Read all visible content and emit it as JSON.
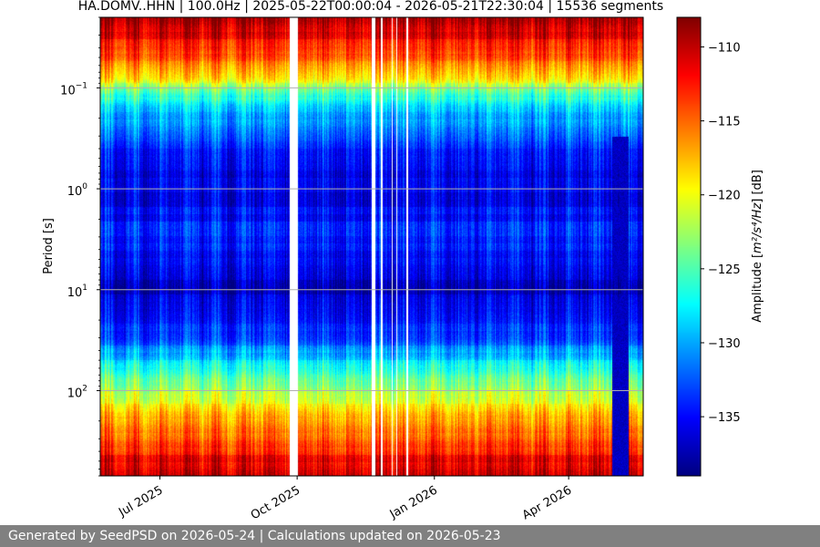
{
  "chart_data": {
    "type": "heatmap",
    "title": "HA.DOMV..HHN | 100.0Hz | 2025-05-22T00:00:04 - 2026-05-21T22:30:04 | 15536 segments",
    "xlabel": "",
    "ylabel": "Period [s]",
    "x_range": [
      "2025-05-22",
      "2026-05-21"
    ],
    "x_ticks": [
      {
        "date": "2025-07-01",
        "label": "Jul 2025"
      },
      {
        "date": "2025-10-01",
        "label": "Oct 2025"
      },
      {
        "date": "2026-01-01",
        "label": "Jan 2026"
      },
      {
        "date": "2026-04-01",
        "label": "Apr 2026"
      }
    ],
    "y_scale": "log",
    "y_inverted": true,
    "y_range": [
      0.02,
      700
    ],
    "y_ticks": [
      {
        "value": 0.1,
        "base": "10",
        "exp": "−1"
      },
      {
        "value": 1,
        "base": "10",
        "exp": "0"
      },
      {
        "value": 10,
        "base": "10",
        "exp": "1"
      },
      {
        "value": 100,
        "base": "10",
        "exp": "2"
      }
    ],
    "grid": true,
    "colormap": "jet",
    "colorbar": {
      "label_prefix": "Amplitude [",
      "label_math": "m²/s⁴/Hz",
      "label_suffix": "] [dB]",
      "range": [
        -139,
        -108
      ],
      "ticks": [
        {
          "value": -110,
          "label": "−110"
        },
        {
          "value": -115,
          "label": "−115"
        },
        {
          "value": -120,
          "label": "−120"
        },
        {
          "value": -125,
          "label": "−125"
        },
        {
          "value": -130,
          "label": "−130"
        },
        {
          "value": -135,
          "label": "−135"
        }
      ]
    },
    "data_gaps": [
      [
        "2025-09-26",
        "2025-10-01"
      ],
      [
        "2025-11-20",
        "2025-11-22"
      ],
      [
        "2025-11-26",
        "2025-11-27"
      ],
      [
        "2025-12-03",
        "2025-12-04"
      ],
      [
        "2025-12-06",
        "2025-12-07"
      ],
      [
        "2025-12-13",
        "2025-12-14"
      ]
    ],
    "profile": [
      {
        "period": 0.02,
        "db": -109
      },
      {
        "period": 0.04,
        "db": -113
      },
      {
        "period": 0.08,
        "db": -119
      },
      {
        "period": 0.15,
        "db": -129
      },
      {
        "period": 0.4,
        "db": -134
      },
      {
        "period": 0.9,
        "db": -136
      },
      {
        "period": 3,
        "db": -134
      },
      {
        "period": 10,
        "db": -137
      },
      {
        "period": 30,
        "db": -133
      },
      {
        "period": 80,
        "db": -124
      },
      {
        "period": 200,
        "db": -117
      },
      {
        "period": 450,
        "db": -112
      },
      {
        "period": 700,
        "db": -110
      }
    ],
    "anomalies": [
      {
        "start": "2026-04-30",
        "end": "2026-05-11",
        "min_period": 0.3,
        "db": -137
      }
    ]
  },
  "footer": {
    "text": "Generated by SeedPSD on 2026-05-24 | Calculations updated on 2026-05-23"
  }
}
